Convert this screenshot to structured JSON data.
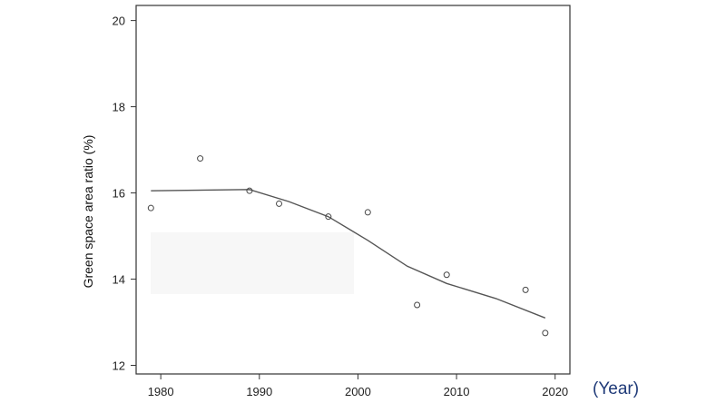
{
  "chart_data": {
    "type": "scatter",
    "title": "",
    "ylabel": "Green space area ratio (%)",
    "xlabel": "",
    "x_unit_note": "(Year)",
    "xlim": [
      1977.5,
      2021.5
    ],
    "ylim": [
      11.8,
      20.35
    ],
    "x_ticks": [
      1980,
      1990,
      2000,
      2010,
      2020
    ],
    "y_ticks": [
      12,
      14,
      16,
      18,
      20
    ],
    "grid": false,
    "points": [
      {
        "x": 1979,
        "y": 15.65
      },
      {
        "x": 1984,
        "y": 16.8
      },
      {
        "x": 1989,
        "y": 16.05
      },
      {
        "x": 1992,
        "y": 15.75
      },
      {
        "x": 1997,
        "y": 15.45
      },
      {
        "x": 2001,
        "y": 15.55
      },
      {
        "x": 2006,
        "y": 13.4
      },
      {
        "x": 2009,
        "y": 14.1
      },
      {
        "x": 2017,
        "y": 13.75
      },
      {
        "x": 2019,
        "y": 12.75
      }
    ],
    "trend_line": [
      {
        "x": 1979,
        "y": 16.05
      },
      {
        "x": 1989,
        "y": 16.08
      },
      {
        "x": 1993,
        "y": 15.8
      },
      {
        "x": 1997,
        "y": 15.45
      },
      {
        "x": 2001,
        "y": 14.9
      },
      {
        "x": 2005,
        "y": 14.3
      },
      {
        "x": 2009,
        "y": 13.9
      },
      {
        "x": 2014,
        "y": 13.55
      },
      {
        "x": 2019,
        "y": 13.1
      }
    ],
    "colors": {
      "axis": "#333333",
      "marker": "#444444",
      "line": "#555555",
      "unit_note": "#1f3a78"
    }
  }
}
